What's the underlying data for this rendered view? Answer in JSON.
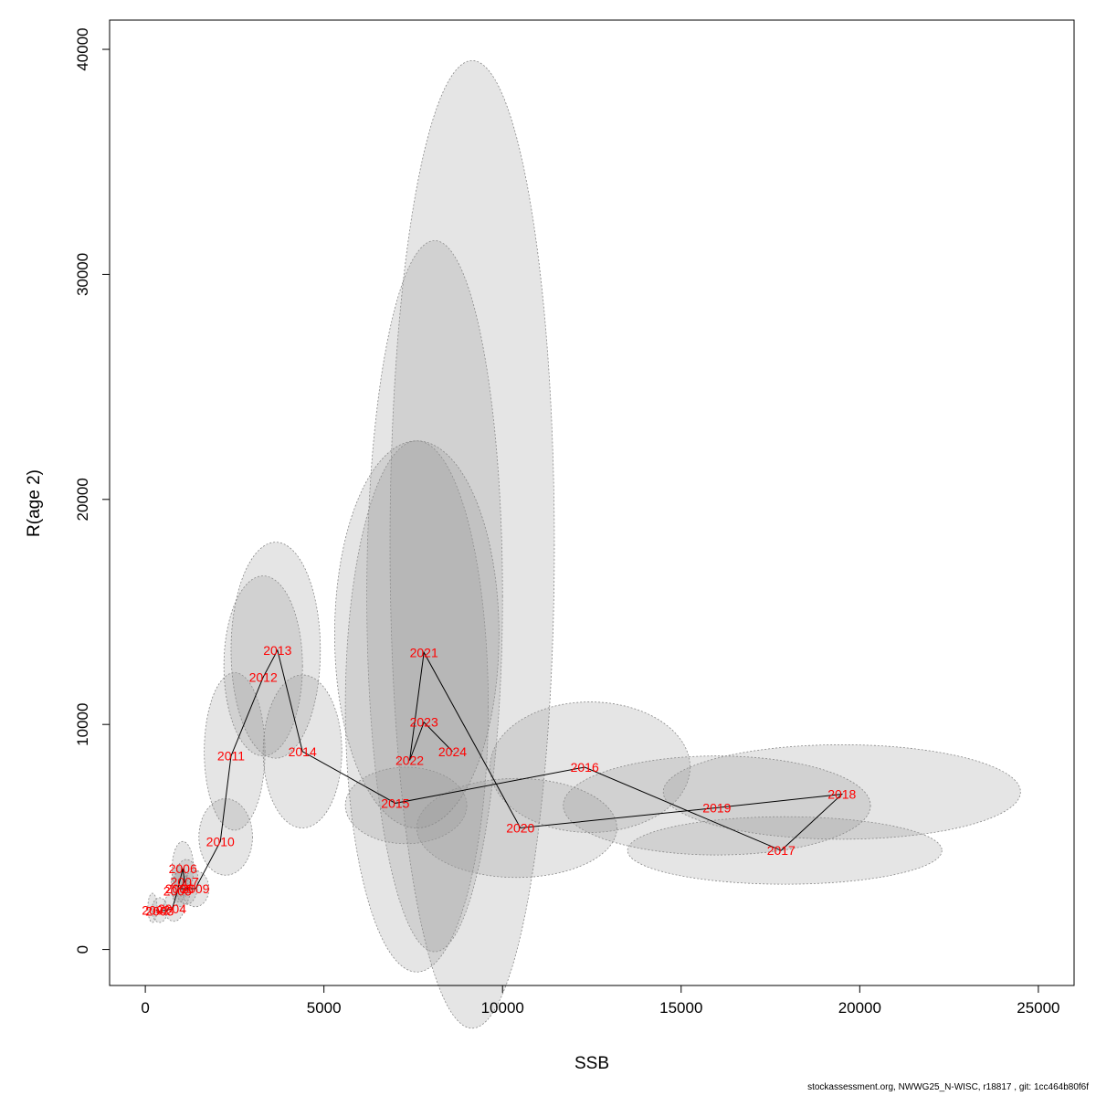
{
  "chart_data": {
    "type": "scatter",
    "xlabel": "SSB",
    "ylabel": "R(age 2)",
    "xlim": [
      -1000,
      26000
    ],
    "ylim": [
      -1600,
      41300
    ],
    "x_ticks": [
      0,
      5000,
      10000,
      15000,
      20000,
      25000
    ],
    "y_ticks": [
      0,
      10000,
      20000,
      30000,
      40000
    ],
    "x_tick_labels": [
      "0",
      "5000",
      "10000",
      "15000",
      "20000",
      "25000"
    ],
    "y_tick_labels": [
      "0",
      "10000",
      "20000",
      "30000",
      "40000"
    ],
    "label_color": "#ff0000",
    "line_color": "#000000",
    "ellipse_fill": "rgba(150,150,150,0.25)",
    "ellipse_stroke": "#888888",
    "points": [
      {
        "year": "2002",
        "ssb": 300,
        "rec": 1750
      },
      {
        "year": "2003",
        "ssb": 400,
        "rec": 1700
      },
      {
        "year": "2004",
        "ssb": 750,
        "rec": 1800
      },
      {
        "year": "2005",
        "ssb": 900,
        "rec": 2600
      },
      {
        "year": "2006",
        "ssb": 1050,
        "rec": 3600
      },
      {
        "year": "2007",
        "ssb": 1100,
        "rec": 3000
      },
      {
        "year": "2008",
        "ssb": 950,
        "rec": 2700
      },
      {
        "year": "2009",
        "ssb": 1400,
        "rec": 2700
      },
      {
        "year": "2010",
        "ssb": 2100,
        "rec": 4800
      },
      {
        "year": "2011",
        "ssb": 2400,
        "rec": 8600
      },
      {
        "year": "2012",
        "ssb": 3300,
        "rec": 12100
      },
      {
        "year": "2013",
        "ssb": 3700,
        "rec": 13300
      },
      {
        "year": "2014",
        "ssb": 4400,
        "rec": 8800
      },
      {
        "year": "2015",
        "ssb": 7000,
        "rec": 6500
      },
      {
        "year": "2016",
        "ssb": 12300,
        "rec": 8100
      },
      {
        "year": "2017",
        "ssb": 17800,
        "rec": 4400
      },
      {
        "year": "2018",
        "ssb": 19500,
        "rec": 6900
      },
      {
        "year": "2019",
        "ssb": 16000,
        "rec": 6300
      },
      {
        "year": "2020",
        "ssb": 10500,
        "rec": 5400
      },
      {
        "year": "2021",
        "ssb": 7800,
        "rec": 13200
      },
      {
        "year": "2022",
        "ssb": 7400,
        "rec": 8400
      },
      {
        "year": "2023",
        "ssb": 7800,
        "rec": 10100
      },
      {
        "year": "2024",
        "ssb": 8600,
        "rec": 8800
      }
    ],
    "ellipses": [
      {
        "year": "2002",
        "cx": 200,
        "cy": 1850,
        "rx": 130,
        "ry": 650
      },
      {
        "year": "2003",
        "cx": 400,
        "cy": 1750,
        "rx": 220,
        "ry": 550
      },
      {
        "year": "2004",
        "cx": 800,
        "cy": 1900,
        "rx": 280,
        "ry": 650
      },
      {
        "year": "2005",
        "cx": 950,
        "cy": 2900,
        "rx": 230,
        "ry": 800
      },
      {
        "year": "2006",
        "cx": 1050,
        "cy": 3600,
        "rx": 300,
        "ry": 1200
      },
      {
        "year": "2007",
        "cx": 1150,
        "cy": 3000,
        "rx": 330,
        "ry": 1000
      },
      {
        "year": "2008",
        "cx": 1000,
        "cy": 2700,
        "rx": 260,
        "ry": 800
      },
      {
        "year": "2009",
        "cx": 1400,
        "cy": 2700,
        "rx": 380,
        "ry": 800
      },
      {
        "year": "2010",
        "cx": 2250,
        "cy": 5000,
        "rx": 750,
        "ry": 1700
      },
      {
        "year": "2011",
        "cx": 2500,
        "cy": 8800,
        "rx": 850,
        "ry": 3500
      },
      {
        "year": "2012",
        "cx": 3300,
        "cy": 12600,
        "rx": 1100,
        "ry": 4000
      },
      {
        "year": "2013",
        "cx": 3650,
        "cy": 13300,
        "rx": 1250,
        "ry": 4800
      },
      {
        "year": "2014",
        "cx": 4400,
        "cy": 8800,
        "rx": 1100,
        "ry": 3400
      },
      {
        "year": "2015",
        "cx": 7300,
        "cy": 6400,
        "rx": 1700,
        "ry": 1700
      },
      {
        "year": "2016",
        "cx": 12450,
        "cy": 8100,
        "rx": 2800,
        "ry": 2900
      },
      {
        "year": "2017",
        "cx": 17900,
        "cy": 4400,
        "rx": 4400,
        "ry": 1500
      },
      {
        "year": "2018",
        "cx": 19500,
        "cy": 7000,
        "rx": 5000,
        "ry": 2100
      },
      {
        "year": "2019",
        "cx": 16000,
        "cy": 6400,
        "rx": 4300,
        "ry": 2200
      },
      {
        "year": "2020",
        "cx": 10400,
        "cy": 5400,
        "rx": 2800,
        "ry": 2200
      },
      {
        "year": "2021",
        "cx": 8100,
        "cy": 15700,
        "rx": 1900,
        "ry": 15800
      },
      {
        "year": "2022",
        "cx": 7600,
        "cy": 10800,
        "rx": 2000,
        "ry": 11800
      },
      {
        "year": "2023",
        "cx": 9150,
        "cy": 18000,
        "rx": 2300,
        "ry": 21500
      },
      {
        "year": "2024",
        "cx": 7600,
        "cy": 14000,
        "rx": 2300,
        "ry": 8600
      }
    ]
  },
  "footer_text": "stockassessment.org, NWWG25_N-WISC, r18817 , git: 1cc464b80f6f"
}
